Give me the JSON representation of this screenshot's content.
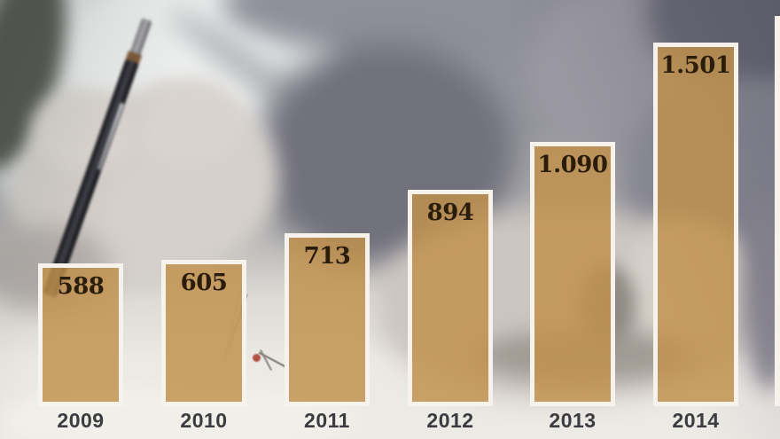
{
  "chart_data": {
    "type": "bar",
    "title": "",
    "xlabel": "",
    "ylabel": "",
    "categories": [
      "2009",
      "2010",
      "2011",
      "2012",
      "2013",
      "2014"
    ],
    "values": [
      588,
      605,
      713,
      894,
      1090,
      1501
    ],
    "value_labels": [
      "588",
      "605",
      "713",
      "894",
      "1.090",
      "1.501"
    ],
    "ylim": [
      0,
      1550
    ],
    "grid": false,
    "legend": "none",
    "orientation": "vertical",
    "bar_fill_rgba": "rgba(193,144,75,0.82)",
    "bar_border": "#F7F3EC",
    "value_label_color": "#2B1D0A",
    "category_label_color": "#3B3B40",
    "background": "blurred grayscale photo of a hand writing with a mechanical pen"
  }
}
